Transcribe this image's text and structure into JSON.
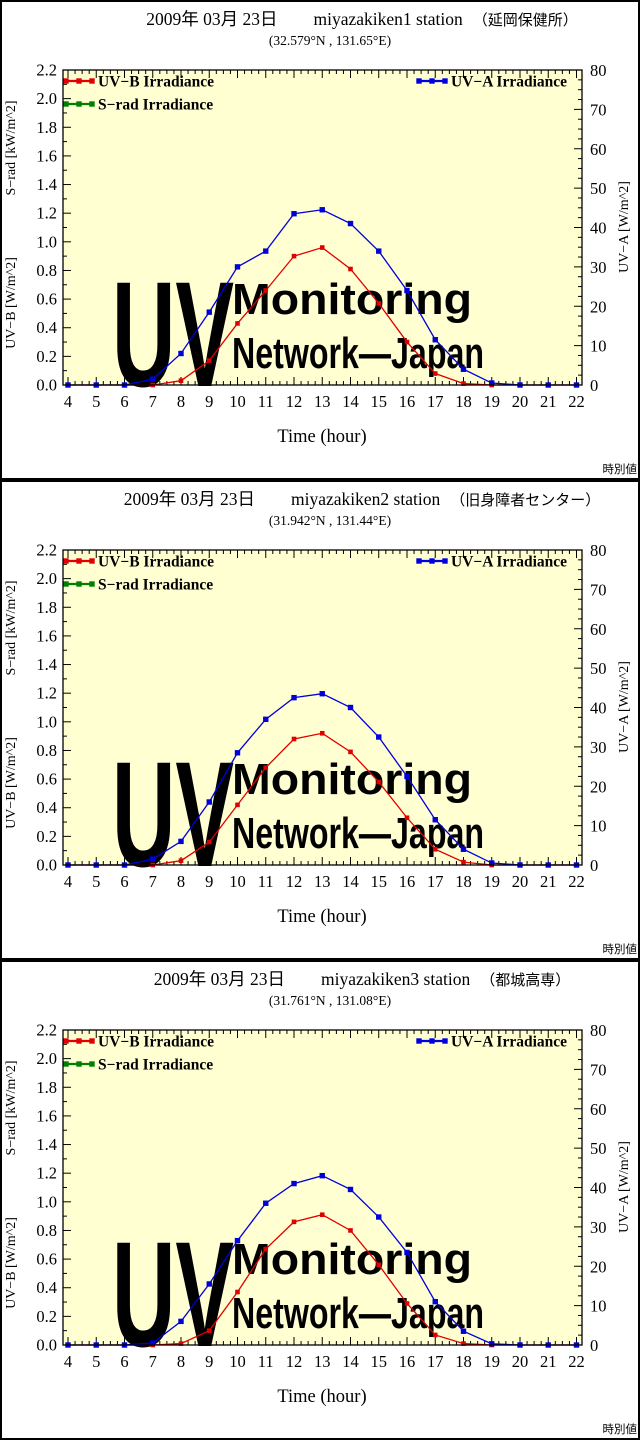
{
  "report": {
    "date_label": "2009年 03月 23日",
    "footer_label": "時別値",
    "watermark": {
      "big": "UV",
      "word1": "Monitoring",
      "word2": "Network—Japan"
    },
    "legend": {
      "uvb_label": "UV−B Irradiance",
      "srad_label": "S−rad Irradiance",
      "uva_label": "UV−A Irradiance"
    },
    "colors": {
      "uvb": "#e00000",
      "srad": "#008000",
      "uva": "#0000dd",
      "plot_bg": "#ffffd2",
      "frame": "#000000",
      "watermark_big": "#e4e4e4",
      "watermark_words": "#efefdf"
    },
    "axes_common": {
      "x": {
        "label": "Time (hour)",
        "range": [
          4,
          22
        ],
        "ticks": [
          4,
          5,
          6,
          7,
          8,
          9,
          10,
          11,
          12,
          13,
          14,
          15,
          16,
          17,
          18,
          19,
          20,
          21,
          22
        ],
        "minor_step": 0.25
      },
      "left": {
        "label_uvb": "UV−B [W/m^2]",
        "label_srad": "S−rad [kW/m^2]",
        "range": [
          0,
          2.2
        ],
        "ticks": [
          "0.0",
          "0.2",
          "0.4",
          "0.6",
          "0.8",
          "1.0",
          "1.2",
          "1.4",
          "1.6",
          "1.8",
          "2.0",
          "2.2"
        ],
        "minor_step": 0.1
      },
      "right": {
        "label": "UV−A [W/m^2]",
        "range": [
          0,
          80
        ],
        "ticks": [
          0,
          10,
          20,
          30,
          40,
          50,
          60,
          70,
          80
        ],
        "minor_step": 2.5
      }
    }
  },
  "chart_data": [
    {
      "type": "line",
      "station_name": "miyazakiken1 station",
      "station_note": "（延岡保健所）",
      "coordinates": "(32.579°N , 131.65°E)",
      "x_hours": [
        4,
        5,
        6,
        7,
        8,
        9,
        10,
        11,
        12,
        13,
        14,
        15,
        16,
        17,
        18,
        19,
        20,
        21,
        22
      ],
      "series": [
        {
          "key": "uvb",
          "name": "UV−B Irradiance",
          "axis": "left",
          "values": [
            0,
            0,
            0,
            0,
            0.03,
            0.17,
            0.43,
            0.66,
            0.9,
            0.96,
            0.81,
            0.57,
            0.3,
            0.08,
            0.01,
            0,
            0,
            0,
            0
          ]
        },
        {
          "key": "srad",
          "name": "S−rad Irradiance",
          "axis": "left",
          "values": []
        },
        {
          "key": "uva",
          "name": "UV−A Irradiance",
          "axis": "right",
          "values": [
            0,
            0,
            0,
            1.5,
            8,
            18.5,
            30,
            34,
            43.5,
            44.5,
            41,
            34,
            24,
            11.5,
            4,
            0.5,
            0,
            0,
            0
          ]
        }
      ]
    },
    {
      "type": "line",
      "station_name": "miyazakiken2 station",
      "station_note": "（旧身障者センター）",
      "coordinates": "(31.942°N , 131.44°E)",
      "x_hours": [
        4,
        5,
        6,
        7,
        8,
        9,
        10,
        11,
        12,
        13,
        14,
        15,
        16,
        17,
        18,
        19,
        20,
        21,
        22
      ],
      "series": [
        {
          "key": "uvb",
          "name": "UV−B Irradiance",
          "axis": "left",
          "values": [
            0,
            0,
            0,
            0,
            0.03,
            0.16,
            0.42,
            0.68,
            0.88,
            0.92,
            0.79,
            0.58,
            0.33,
            0.11,
            0.02,
            0,
            0,
            0,
            0
          ]
        },
        {
          "key": "srad",
          "name": "S−rad Irradiance",
          "axis": "left",
          "values": []
        },
        {
          "key": "uva",
          "name": "UV−A Irradiance",
          "axis": "right",
          "values": [
            0,
            0,
            0,
            1.5,
            6,
            16,
            28.5,
            37,
            42.5,
            43.5,
            40,
            32.5,
            22.5,
            11.5,
            4,
            0.5,
            0,
            0,
            0
          ]
        }
      ]
    },
    {
      "type": "line",
      "station_name": "miyazakiken3 station",
      "station_note": "（都城高専）",
      "coordinates": "(31.761°N , 131.08°E)",
      "x_hours": [
        4,
        5,
        6,
        7,
        8,
        9,
        10,
        11,
        12,
        13,
        14,
        15,
        16,
        17,
        18,
        19,
        20,
        21,
        22
      ],
      "series": [
        {
          "key": "uvb",
          "name": "UV−B Irradiance",
          "axis": "left",
          "values": [
            0,
            0,
            0,
            0,
            0.01,
            0.1,
            0.37,
            0.67,
            0.86,
            0.91,
            0.8,
            0.56,
            0.29,
            0.07,
            0.01,
            0,
            0,
            0,
            0
          ]
        },
        {
          "key": "srad",
          "name": "S−rad Irradiance",
          "axis": "left",
          "values": []
        },
        {
          "key": "uva",
          "name": "UV−A Irradiance",
          "axis": "right",
          "values": [
            0,
            0,
            0,
            0.5,
            6,
            15.5,
            26.5,
            36,
            41,
            43,
            39.5,
            32.5,
            23.5,
            11,
            3.5,
            0.3,
            0,
            0,
            0
          ]
        }
      ]
    }
  ]
}
